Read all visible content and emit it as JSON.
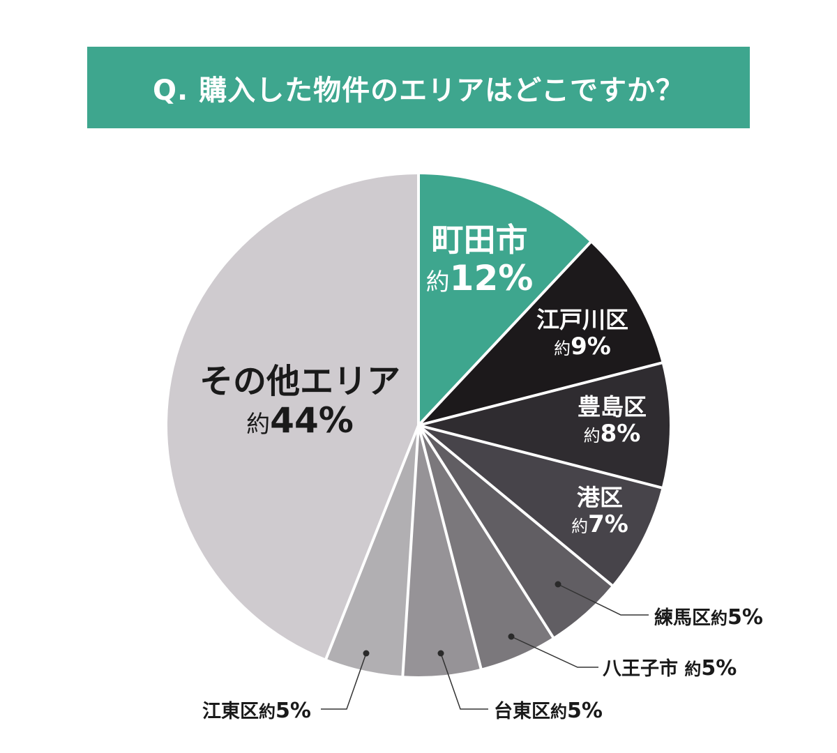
{
  "title": "Q. 購入した物件のエリアはどこですか？",
  "colors": {
    "title_bg": "#3ea68e",
    "slice_text_light": "#ffffff",
    "slice_text_dark": "#1a1a1a",
    "separator": "#ffffff",
    "leader_line": "#333333"
  },
  "labels": {
    "machida": {
      "name": "町田市",
      "approx": "約",
      "value": "12%"
    },
    "edogawa": {
      "name": "江戸川区",
      "approx": "約",
      "value": "9%"
    },
    "toshima": {
      "name": "豊島区",
      "approx": "約",
      "value": "8%"
    },
    "minato": {
      "name": "港区",
      "approx": "約",
      "value": "7%"
    },
    "nerima": {
      "name": "練馬区",
      "approx": "約",
      "value": "5%"
    },
    "hachioji": {
      "name": "八王子市",
      "approx": "約",
      "value": "5%"
    },
    "taito": {
      "name": "台東区",
      "approx": "約",
      "value": "5%"
    },
    "koto": {
      "name": "江東区",
      "approx": "約",
      "value": "5%"
    },
    "other": {
      "name": "その他エリア",
      "approx": "約",
      "value": "44%"
    }
  },
  "chart_data": {
    "type": "pie",
    "title": "Q. 購入した物件のエリアはどこですか？",
    "categories": [
      "町田市",
      "江戸川区",
      "豊島区",
      "港区",
      "練馬区",
      "八王子市",
      "台東区",
      "江東区",
      "その他エリア"
    ],
    "values": [
      12,
      9,
      8,
      7,
      5,
      5,
      5,
      5,
      44
    ],
    "value_prefix": "約",
    "unit": "%",
    "slice_colors": [
      "#3ea68e",
      "#1c191b",
      "#2f2c30",
      "#47444a",
      "#615e63",
      "#7b787c",
      "#969397",
      "#b1afb2",
      "#cfcbcf"
    ],
    "start_angle_deg": 0,
    "direction": "clockwise",
    "legend": "none; labels placed on slices or via leader lines"
  }
}
